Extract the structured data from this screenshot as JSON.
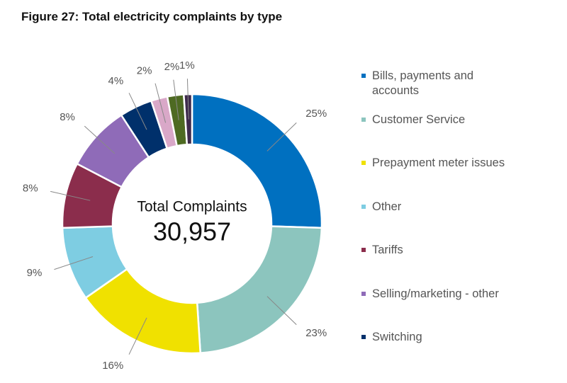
{
  "chart_data": {
    "type": "donut",
    "title": "Figure 27: Total electricity complaints by type",
    "center_title": "Total Complaints",
    "total": {
      "value": 30957,
      "label": "30,957"
    },
    "categories": [
      "Bills, payments and accounts",
      "Customer Service",
      "Prepayment meter issues",
      "Other",
      "Tariffs",
      "Selling/marketing - other",
      "Switching",
      null,
      null,
      null
    ],
    "values": [
      25,
      23,
      16,
      9,
      8,
      8,
      4,
      2,
      2,
      1
    ],
    "value_labels": [
      "25%",
      "23%",
      "16%",
      "9%",
      "8%",
      "8%",
      "4%",
      "2%",
      "2%",
      "1%"
    ],
    "colors": [
      "#0070c0",
      "#8cc5be",
      "#f0e100",
      "#7ecde2",
      "#8b2d4c",
      "#8f6bb8",
      "#00306b",
      "#d9a8c8",
      "#4e6a22",
      "#3e2a4c"
    ],
    "legend": "right"
  }
}
